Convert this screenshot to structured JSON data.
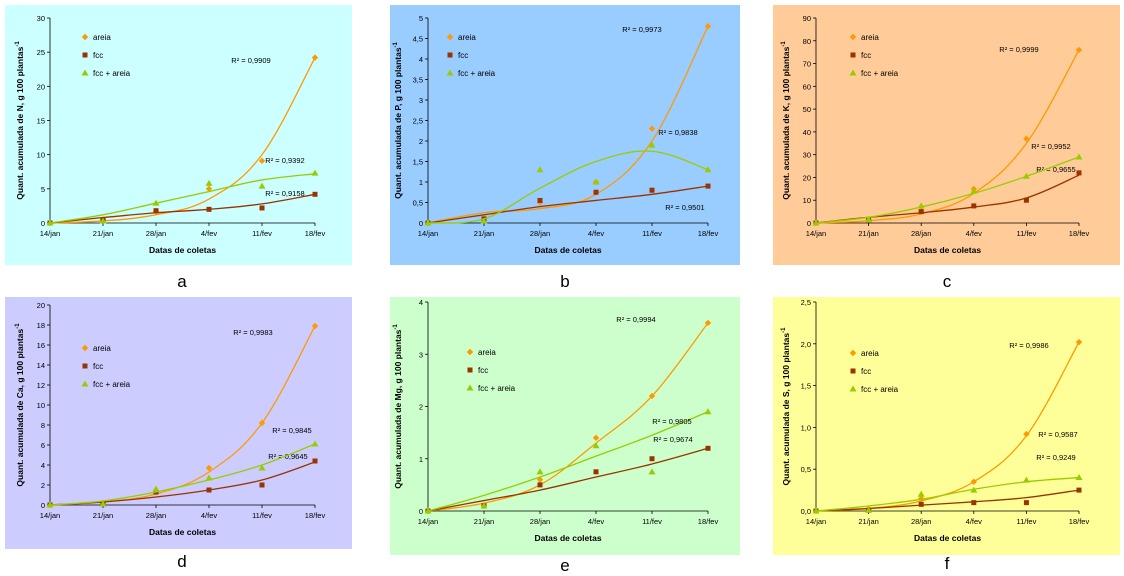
{
  "chart_data": [
    {
      "id": "a",
      "type": "scatter",
      "caption": "a",
      "background": "#ccffff",
      "ylabel": "Quant. acumulada de N, g 100 plantas",
      "ylabel_sup": "-1",
      "xlabel": "Datas de coletas",
      "categories": [
        "14/jan",
        "21/jan",
        "28/jan",
        "4/fev",
        "11/fev",
        "18/fev"
      ],
      "ylim": [
        0,
        30
      ],
      "yticks": [
        "0",
        "5",
        "10",
        "15",
        "20",
        "25",
        "30"
      ],
      "series": [
        {
          "name": "areia",
          "color": "#ff9900",
          "marker": "diamond",
          "values": [
            0,
            0.5,
            1.7,
            5.0,
            9.1,
            24.2
          ],
          "fit": [
            0,
            0.3,
            1.2,
            3.5,
            10.0,
            24.2
          ],
          "r2": "R² = 0,9909"
        },
        {
          "name": "fcc",
          "color": "#993300",
          "marker": "square",
          "values": [
            0,
            0.4,
            1.8,
            2.0,
            2.2,
            4.2
          ],
          "fit": [
            0,
            0.8,
            1.5,
            2.0,
            2.8,
            4.2
          ],
          "r2": "R² = 0,9158"
        },
        {
          "name": "fcc + areia",
          "color": "#99cc00",
          "marker": "triangle",
          "values": [
            0,
            0.3,
            2.9,
            5.8,
            5.4,
            7.3
          ],
          "fit": [
            0,
            1.2,
            2.9,
            4.6,
            6.3,
            7.2
          ],
          "r2": "R² = 0,9392"
        }
      ]
    },
    {
      "id": "b",
      "type": "scatter",
      "caption": "b",
      "background": "#99ccff",
      "ylabel": "Quant. acumulada de P, g 100 plantas",
      "ylabel_sup": "-1",
      "xlabel": "Datas de coletas",
      "categories": [
        "14/jan",
        "21/jan",
        "28/jan",
        "4/fev",
        "11/fev",
        "18/fev"
      ],
      "ylim": [
        0,
        5
      ],
      "yticks": [
        "0",
        "0,5",
        "1",
        "1,5",
        "2",
        "2,5",
        "3",
        "3,5",
        "4",
        "4,5",
        "5"
      ],
      "series": [
        {
          "name": "areia",
          "color": "#ff9900",
          "marker": "diamond",
          "values": [
            0,
            0.1,
            0.5,
            1.0,
            2.3,
            4.8
          ],
          "fit": [
            0,
            0.25,
            0.35,
            0.7,
            2.0,
            4.8
          ],
          "r2": "R² = 0,9973"
        },
        {
          "name": "fcc",
          "color": "#993300",
          "marker": "square",
          "values": [
            0,
            0.1,
            0.55,
            0.75,
            0.8,
            0.9
          ],
          "fit": [
            0,
            0.2,
            0.4,
            0.55,
            0.7,
            0.9
          ],
          "r2": "R² = 0,9501"
        },
        {
          "name": "fcc + areia",
          "color": "#99cc00",
          "marker": "triangle",
          "values": [
            0,
            0.05,
            1.3,
            1.0,
            1.9,
            1.3
          ],
          "fit": [
            0,
            0.1,
            0.85,
            1.5,
            1.75,
            1.3
          ],
          "r2": "R² = 0,9838"
        }
      ]
    },
    {
      "id": "c",
      "type": "scatter",
      "caption": "c",
      "background": "#ffcc99",
      "ylabel": "Quant. acumulada de K, g 100 plantas",
      "ylabel_sup": "-1",
      "xlabel": "Datas de coletas",
      "categories": [
        "14/jan",
        "21/jan",
        "28/jan",
        "4/fev",
        "11/fev",
        "18/fev"
      ],
      "ylim": [
        0,
        90
      ],
      "yticks": [
        "0",
        "10",
        "20",
        "30",
        "40",
        "50",
        "60",
        "70",
        "80",
        "90"
      ],
      "series": [
        {
          "name": "areia",
          "color": "#ff9900",
          "marker": "diamond",
          "values": [
            0,
            1.5,
            5.5,
            15,
            37,
            76
          ],
          "fit": [
            0,
            1.0,
            4.0,
            13,
            35,
            76
          ],
          "r2": "R² = 0,9999"
        },
        {
          "name": "fcc",
          "color": "#993300",
          "marker": "square",
          "values": [
            0,
            1.5,
            5.0,
            7.5,
            10,
            22
          ],
          "fit": [
            0,
            2.5,
            4.5,
            7,
            11,
            21
          ],
          "r2": "R² = 0,9655"
        },
        {
          "name": "fcc + areia",
          "color": "#99cc00",
          "marker": "triangle",
          "values": [
            0,
            1.5,
            7.5,
            14,
            20.5,
            29
          ],
          "fit": [
            0,
            2.5,
            7,
            13,
            20.5,
            29
          ],
          "r2": "R² = 0,9952"
        }
      ]
    },
    {
      "id": "d",
      "type": "scatter",
      "caption": "d",
      "background": "#ccccff",
      "ylabel": "Quant. acumulada de Ca, g 100 plantas",
      "ylabel_sup": "-1",
      "xlabel": "Datas de coletas",
      "categories": [
        "14/jan",
        "21/jan",
        "28/jan",
        "4/fev",
        "11/fev",
        "18/fev"
      ],
      "ylim": [
        0,
        20
      ],
      "yticks": [
        "0",
        "2",
        "4",
        "6",
        "8",
        "10",
        "12",
        "14",
        "16",
        "18",
        "20"
      ],
      "series": [
        {
          "name": "areia",
          "color": "#ff9900",
          "marker": "diamond",
          "values": [
            0,
            0.2,
            1.3,
            3.7,
            8.2,
            17.9
          ],
          "fit": [
            0,
            0.3,
            1.1,
            3.3,
            8.2,
            17.9
          ],
          "r2": "R² = 0,9983"
        },
        {
          "name": "fcc",
          "color": "#993300",
          "marker": "square",
          "values": [
            0,
            0.1,
            1.3,
            1.5,
            2.0,
            4.4
          ],
          "fit": [
            0,
            0.3,
            0.8,
            1.5,
            2.5,
            4.3
          ],
          "r2": "R² = 0,9645"
        },
        {
          "name": "fcc + areia",
          "color": "#99cc00",
          "marker": "triangle",
          "values": [
            0,
            0.1,
            1.6,
            2.7,
            3.7,
            6.1
          ],
          "fit": [
            0,
            0.4,
            1.3,
            2.5,
            4.0,
            6.1
          ],
          "r2": "R² = 0,9845"
        }
      ]
    },
    {
      "id": "e",
      "type": "scatter",
      "caption": "e",
      "background": "#ccffcc",
      "ylabel": "Quant. acumulada de Mg, g 100 plantas",
      "ylabel_sup": "-1",
      "xlabel": "Datas de coletas",
      "categories": [
        "14/jan",
        "21/jan",
        "28/jan",
        "4/fev",
        "11/fev",
        "18/fev"
      ],
      "ylim": [
        0,
        4
      ],
      "yticks": [
        "0",
        "1",
        "2",
        "3",
        "4"
      ],
      "series": [
        {
          "name": "areia",
          "color": "#ff9900",
          "marker": "diamond",
          "values": [
            0,
            0.1,
            0.6,
            1.4,
            2.2,
            3.6
          ],
          "fit": [
            0,
            0.15,
            0.5,
            1.3,
            2.2,
            3.6
          ],
          "r2": "R² = 0,9994"
        },
        {
          "name": "fcc",
          "color": "#993300",
          "marker": "square",
          "values": [
            0,
            0.1,
            0.5,
            0.75,
            1.0,
            1.2
          ],
          "fit": [
            0,
            0.2,
            0.4,
            0.65,
            0.9,
            1.2
          ],
          "r2": "R² = 0,9674"
        },
        {
          "name": "fcc + areia",
          "color": "#99cc00",
          "marker": "triangle",
          "values": [
            0,
            0.1,
            0.75,
            1.25,
            0.75,
            1.9
          ],
          "fit": [
            0,
            0.3,
            0.65,
            1.05,
            1.45,
            1.9
          ],
          "r2": "R² = 0,9805"
        }
      ]
    },
    {
      "id": "f",
      "type": "scatter",
      "caption": "f",
      "background": "#ffff99",
      "ylabel": "Quant. acumulada de S, g 100 plantas",
      "ylabel_sup": "-1",
      "xlabel": "Datas de coletas",
      "categories": [
        "14/jan",
        "21/jan",
        "28/jan",
        "4/fev",
        "11/fev",
        "18/fev"
      ],
      "ylim": [
        0,
        2.5
      ],
      "yticks": [
        "0,0",
        "0,5",
        "1,0",
        "1,5",
        "2,0",
        "2,5"
      ],
      "series": [
        {
          "name": "areia",
          "color": "#ff9900",
          "marker": "diamond",
          "values": [
            0,
            0.02,
            0.15,
            0.35,
            0.92,
            2.02
          ],
          "fit": [
            0,
            0.03,
            0.12,
            0.35,
            0.9,
            2.02
          ],
          "r2": "R² = 0,9986"
        },
        {
          "name": "fcc",
          "color": "#993300",
          "marker": "square",
          "values": [
            0,
            0.01,
            0.08,
            0.1,
            0.1,
            0.25
          ],
          "fit": [
            0,
            0.03,
            0.07,
            0.11,
            0.16,
            0.25
          ],
          "r2": "R² = 0,9249"
        },
        {
          "name": "fcc + areia",
          "color": "#99cc00",
          "marker": "triangle",
          "values": [
            0,
            0.01,
            0.2,
            0.25,
            0.37,
            0.4
          ],
          "fit": [
            0,
            0.06,
            0.14,
            0.26,
            0.35,
            0.4
          ],
          "r2": "R² = 0,9587"
        }
      ]
    }
  ]
}
